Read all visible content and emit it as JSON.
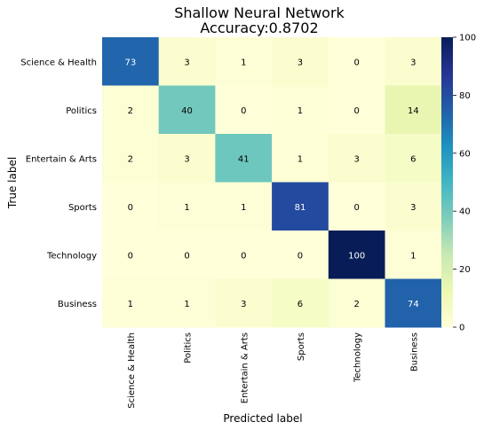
{
  "chart_data": {
    "type": "heatmap",
    "title_line1": "Shallow Neural Network",
    "title_line2": "Accuracy:0.8702",
    "xlabel": "Predicted label",
    "ylabel": "True label",
    "categories": [
      "Science & Health",
      "Politics",
      "Entertain & Arts",
      "Sports",
      "Technology",
      "Business"
    ],
    "matrix": [
      [
        73,
        3,
        1,
        3,
        0,
        3
      ],
      [
        2,
        40,
        0,
        1,
        0,
        14
      ],
      [
        2,
        3,
        41,
        1,
        3,
        6
      ],
      [
        0,
        1,
        1,
        81,
        0,
        3
      ],
      [
        0,
        0,
        0,
        0,
        100,
        1
      ],
      [
        1,
        1,
        3,
        6,
        2,
        74
      ]
    ],
    "colorbar": {
      "min": 0,
      "max": 100,
      "ticks": [
        0,
        20,
        40,
        60,
        80,
        100
      ],
      "colormap": "YlGnBu"
    },
    "grid": false
  }
}
